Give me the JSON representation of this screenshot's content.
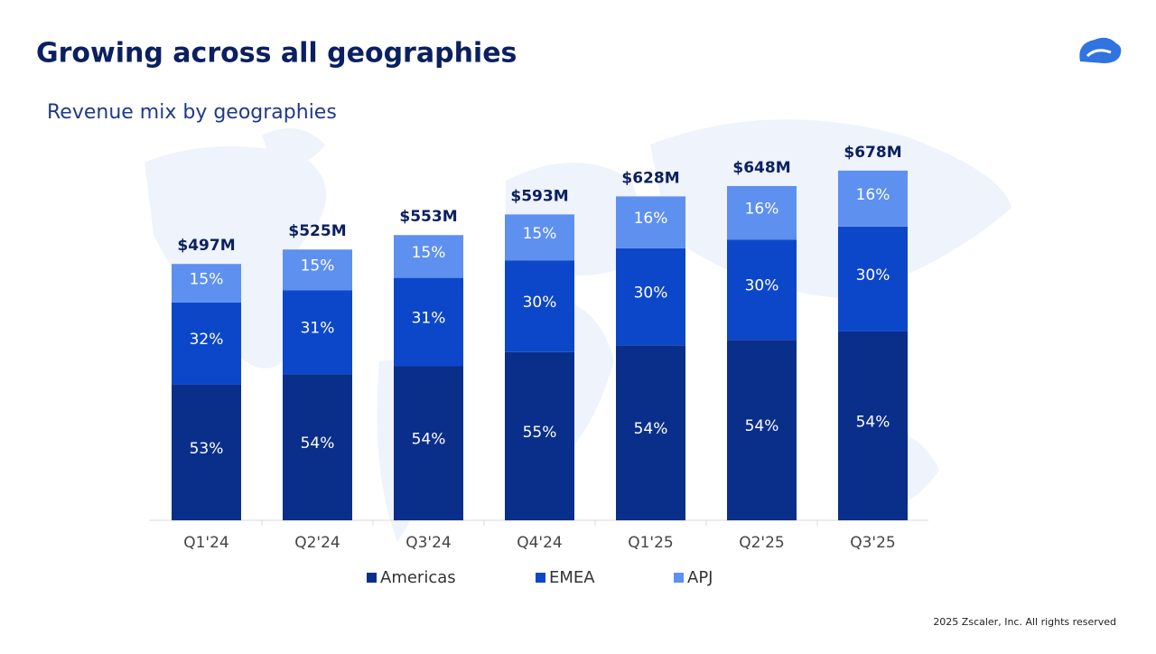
{
  "header": {
    "title": "Growing across all geographies",
    "subtitle": "Revenue mix by geographies"
  },
  "footer": "2025 Zscaler, Inc. All rights reserved",
  "chart_data": {
    "type": "stacked_bar",
    "categories": [
      "Q1'24",
      "Q2'24",
      "Q3'24",
      "Q4'24",
      "Q1'25",
      "Q2'25",
      "Q3'25"
    ],
    "totals": {
      "values": [
        497,
        525,
        553,
        593,
        628,
        648,
        678
      ],
      "value_labels": [
        "$497M",
        "$525M",
        "$553M",
        "$593M",
        "$628M",
        "$648M",
        "$678M"
      ]
    },
    "series": [
      {
        "name": "Americas",
        "color": "#0a2f8a",
        "values": [
          53,
          54,
          54,
          55,
          54,
          54,
          54
        ],
        "value_labels": [
          "53%",
          "54%",
          "54%",
          "55%",
          "54%",
          "54%",
          "54%"
        ]
      },
      {
        "name": "EMEA",
        "color": "#0d47c9",
        "values": [
          32,
          31,
          31,
          30,
          30,
          30,
          30
        ],
        "value_labels": [
          "32%",
          "31%",
          "31%",
          "30%",
          "30%",
          "30%",
          "30%"
        ]
      },
      {
        "name": "APJ",
        "color": "#5e90f0",
        "values": [
          15,
          15,
          15,
          15,
          16,
          16,
          16
        ],
        "value_labels": [
          "15%",
          "15%",
          "15%",
          "15%",
          "16%",
          "16%",
          "16%"
        ]
      }
    ]
  }
}
